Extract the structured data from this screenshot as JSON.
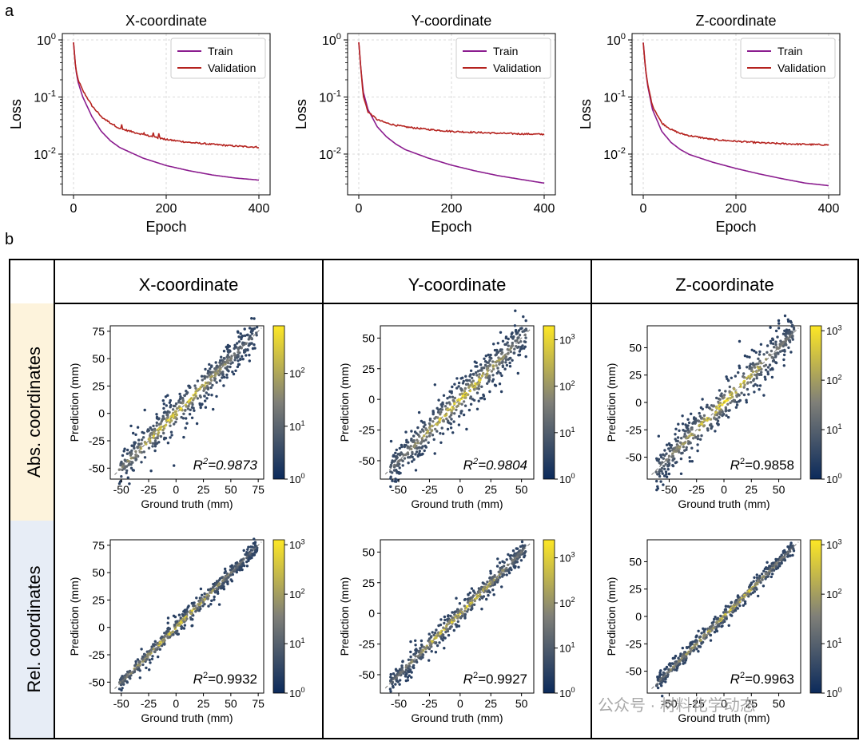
{
  "panel_labels": {
    "a": "a",
    "b": "b"
  },
  "grid": {
    "col_headers": [
      "X-coordinate",
      "Y-coordinate",
      "Z-coordinate"
    ],
    "row_headers": [
      "Abs. coordinates",
      "Rel. coordinates"
    ]
  },
  "watermark": "公众号 · 材料化学动态",
  "colors": {
    "train": "#8b1d8f",
    "validation": "#b5231f",
    "cmap_low": "#0b2a5b",
    "cmap_mid": "#7f7f78",
    "cmap_high": "#fde725",
    "abs_row_bg": "#fdf3dc",
    "rel_row_bg": "#e7edf6"
  },
  "chart_data": [
    {
      "type": "line",
      "title": "X-coordinate",
      "xlabel": "Epoch",
      "ylabel": "Loss",
      "yscale": "log",
      "xlim": [
        0,
        400
      ],
      "ylim": [
        0.0025,
        1.0
      ],
      "xticks": [
        0,
        200,
        400
      ],
      "yticks": [
        {
          "v": 1,
          "e": "0"
        },
        {
          "v": 0.1,
          "e": "-1"
        },
        {
          "v": 0.01,
          "e": "-2"
        }
      ],
      "legend": "top-right",
      "grid": true,
      "series": [
        {
          "name": "Train",
          "x": [
            0,
            5,
            10,
            20,
            40,
            60,
            80,
            100,
            150,
            200,
            250,
            300,
            350,
            400
          ],
          "y": [
            0.9,
            0.3,
            0.18,
            0.1,
            0.045,
            0.025,
            0.017,
            0.013,
            0.0085,
            0.0063,
            0.0051,
            0.0043,
            0.0038,
            0.0035
          ]
        },
        {
          "name": "Validation",
          "x": [
            0,
            5,
            10,
            20,
            40,
            60,
            80,
            100,
            150,
            200,
            250,
            300,
            350,
            400
          ],
          "y": [
            0.9,
            0.3,
            0.2,
            0.13,
            0.07,
            0.045,
            0.035,
            0.028,
            0.022,
            0.018,
            0.016,
            0.0148,
            0.0138,
            0.0132
          ]
        }
      ]
    },
    {
      "type": "line",
      "title": "Y-coordinate",
      "xlabel": "Epoch",
      "ylabel": "Loss",
      "yscale": "log",
      "xlim": [
        0,
        400
      ],
      "ylim": [
        0.0025,
        1.0
      ],
      "xticks": [
        0,
        200,
        400
      ],
      "yticks": [
        {
          "v": 1,
          "e": "0"
        },
        {
          "v": 0.1,
          "e": "-1"
        },
        {
          "v": 0.01,
          "e": "-2"
        }
      ],
      "legend": "top-right",
      "grid": true,
      "series": [
        {
          "name": "Train",
          "x": [
            0,
            5,
            10,
            20,
            40,
            60,
            80,
            100,
            150,
            200,
            250,
            300,
            350,
            400
          ],
          "y": [
            0.9,
            0.28,
            0.12,
            0.06,
            0.03,
            0.02,
            0.015,
            0.012,
            0.0085,
            0.0064,
            0.0051,
            0.0042,
            0.0036,
            0.0031
          ]
        },
        {
          "name": "Validation",
          "x": [
            0,
            5,
            10,
            20,
            40,
            60,
            80,
            100,
            150,
            200,
            250,
            300,
            350,
            400
          ],
          "y": [
            0.9,
            0.28,
            0.1,
            0.055,
            0.04,
            0.035,
            0.032,
            0.03,
            0.027,
            0.025,
            0.024,
            0.0232,
            0.0226,
            0.0222
          ]
        }
      ]
    },
    {
      "type": "line",
      "title": "Z-coordinate",
      "xlabel": "Epoch",
      "ylabel": "Loss",
      "yscale": "log",
      "xlim": [
        0,
        400
      ],
      "ylim": [
        0.0025,
        1.0
      ],
      "xticks": [
        0,
        200,
        400
      ],
      "yticks": [
        {
          "v": 1,
          "e": "0"
        },
        {
          "v": 0.1,
          "e": "-1"
        },
        {
          "v": 0.01,
          "e": "-2"
        }
      ],
      "legend": "top-right",
      "grid": true,
      "series": [
        {
          "name": "Train",
          "x": [
            0,
            5,
            10,
            20,
            40,
            60,
            80,
            100,
            150,
            200,
            250,
            300,
            350,
            400
          ],
          "y": [
            0.9,
            0.3,
            0.15,
            0.06,
            0.025,
            0.016,
            0.012,
            0.0098,
            0.0072,
            0.0056,
            0.0045,
            0.0037,
            0.0031,
            0.0028
          ]
        },
        {
          "name": "Validation",
          "x": [
            0,
            5,
            10,
            20,
            40,
            60,
            80,
            100,
            150,
            200,
            250,
            300,
            350,
            400
          ],
          "y": [
            0.9,
            0.3,
            0.16,
            0.07,
            0.035,
            0.027,
            0.023,
            0.021,
            0.018,
            0.0168,
            0.0158,
            0.0152,
            0.0148,
            0.0145
          ]
        }
      ]
    },
    {
      "type": "scatter",
      "row": "Abs. coordinates",
      "column": "X-coordinate",
      "xlabel": "Ground truth (mm)",
      "ylabel": "Prediction (mm)",
      "r2_label": "R",
      "r2_value": "=0.9873",
      "r2_italic": true,
      "xlim": [
        -60,
        80
      ],
      "ylim": [
        -60,
        80
      ],
      "xticks": [
        -50,
        -25,
        0,
        25,
        50,
        75
      ],
      "yticks": [
        -50,
        -25,
        0,
        25,
        50,
        75
      ],
      "colorbar_max_exp": 2.9,
      "colorbar_ticks": [
        {
          "v": 0,
          "e": "0"
        },
        {
          "v": 1,
          "e": "1"
        },
        {
          "v": 2,
          "e": "2"
        }
      ]
    },
    {
      "type": "scatter",
      "row": "Abs. coordinates",
      "column": "Y-coordinate",
      "xlabel": "Ground truth (mm)",
      "ylabel": "Prediction (mm)",
      "r2_label": "R",
      "r2_value": "=0.9804",
      "r2_italic": true,
      "xlim": [
        -65,
        60
      ],
      "ylim": [
        -65,
        60
      ],
      "xticks": [
        -50,
        -25,
        0,
        25,
        50
      ],
      "yticks": [
        -50,
        -25,
        0,
        25,
        50
      ],
      "colorbar_max_exp": 3.3,
      "colorbar_ticks": [
        {
          "v": 0,
          "e": "0"
        },
        {
          "v": 1,
          "e": "1"
        },
        {
          "v": 2,
          "e": "2"
        },
        {
          "v": 3,
          "e": "3"
        }
      ]
    },
    {
      "type": "scatter",
      "row": "Abs. coordinates",
      "column": "Z-coordinate",
      "xlabel": "Ground truth (mm)",
      "ylabel": "Prediction (mm)",
      "r2_label": "R",
      "r2_value": "=0.9858",
      "r2_italic": false,
      "xlim": [
        -70,
        70
      ],
      "ylim": [
        -70,
        70
      ],
      "xticks": [
        -50,
        -25,
        0,
        25,
        50
      ],
      "yticks": [
        -50,
        -25,
        0,
        25,
        50
      ],
      "colorbar_max_exp": 3.1,
      "colorbar_ticks": [
        {
          "v": 0,
          "e": "0"
        },
        {
          "v": 1,
          "e": "1"
        },
        {
          "v": 2,
          "e": "2"
        },
        {
          "v": 3,
          "e": "3"
        }
      ]
    },
    {
      "type": "scatter",
      "row": "Rel. coordinates",
      "column": "X-coordinate",
      "xlabel": "Ground truth (mm)",
      "ylabel": "Prediction (mm)",
      "r2_label": "R",
      "r2_value": "=0.9932",
      "r2_italic": false,
      "xlim": [
        -60,
        80
      ],
      "ylim": [
        -60,
        80
      ],
      "xticks": [
        -50,
        -25,
        0,
        25,
        50,
        75
      ],
      "yticks": [
        -50,
        -25,
        0,
        25,
        50,
        75
      ],
      "colorbar_max_exp": 3.1,
      "colorbar_ticks": [
        {
          "v": 0,
          "e": "0"
        },
        {
          "v": 1,
          "e": "1"
        },
        {
          "v": 2,
          "e": "2"
        },
        {
          "v": 3,
          "e": "3"
        }
      ]
    },
    {
      "type": "scatter",
      "row": "Rel. coordinates",
      "column": "Y-coordinate",
      "xlabel": "Ground truth (mm)",
      "ylabel": "Prediction (mm)",
      "r2_label": "R",
      "r2_value": "=0.9927",
      "r2_italic": false,
      "xlim": [
        -65,
        60
      ],
      "ylim": [
        -65,
        60
      ],
      "xticks": [
        -50,
        -25,
        0,
        25,
        50
      ],
      "yticks": [
        -50,
        -25,
        0,
        25,
        50
      ],
      "colorbar_max_exp": 3.4,
      "colorbar_ticks": [
        {
          "v": 0,
          "e": "0"
        },
        {
          "v": 1,
          "e": "1"
        },
        {
          "v": 2,
          "e": "2"
        },
        {
          "v": 3,
          "e": "3"
        }
      ]
    },
    {
      "type": "scatter",
      "row": "Rel. coordinates",
      "column": "Z-coordinate",
      "xlabel": "Ground truth (mm)",
      "ylabel": "Prediction (mm)",
      "r2_label": "R",
      "r2_value": "=0.9963",
      "r2_italic": false,
      "xlim": [
        -70,
        70
      ],
      "ylim": [
        -70,
        70
      ],
      "xticks": [
        -50,
        -25,
        0,
        25,
        50
      ],
      "yticks": [
        -50,
        -25,
        0,
        25,
        50
      ],
      "colorbar_max_exp": 3.1,
      "colorbar_ticks": [
        {
          "v": 0,
          "e": "0"
        },
        {
          "v": 1,
          "e": "1"
        },
        {
          "v": 2,
          "e": "2"
        },
        {
          "v": 3,
          "e": "3"
        }
      ]
    }
  ]
}
